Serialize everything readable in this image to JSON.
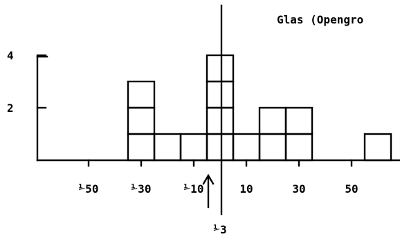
{
  "chart_data": {
    "type": "bar",
    "title": "Glas (Opengro",
    "xlabel": "",
    "ylabel": "",
    "x_ticks": [
      "⅟50",
      "⅟30",
      "⅟10",
      "10",
      "30",
      "50"
    ],
    "y_ticks": [
      "2",
      "4"
    ],
    "marker_label": "⅟3",
    "bin_width": 10,
    "bins": [
      {
        "x_start": -35,
        "x_end": -25,
        "count": 3
      },
      {
        "x_start": -25,
        "x_end": -15,
        "count": 1
      },
      {
        "x_start": -15,
        "x_end": -5,
        "count": 1
      },
      {
        "x_start": -5,
        "x_end": 5,
        "count": 4
      },
      {
        "x_start": 5,
        "x_end": 15,
        "count": 1
      },
      {
        "x_start": 15,
        "x_end": 25,
        "count": 2
      },
      {
        "x_start": 25,
        "x_end": 35,
        "count": 2
      },
      {
        "x_start": 55,
        "x_end": 65,
        "count": 1
      }
    ],
    "ylim": [
      0,
      5
    ],
    "xlim": [
      -60,
      72
    ],
    "grid": false,
    "legend": "none"
  }
}
